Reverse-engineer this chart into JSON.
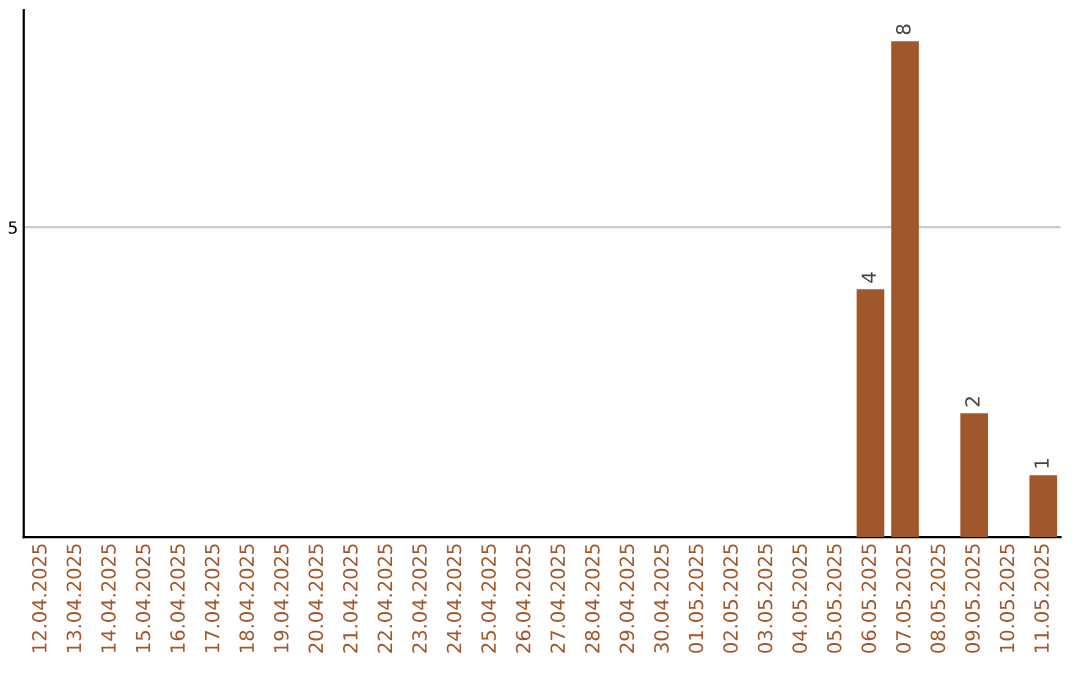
{
  "chart_data": {
    "type": "bar",
    "categories": [
      "12.04.2025",
      "13.04.2025",
      "14.04.2025",
      "15.04.2025",
      "16.04.2025",
      "17.04.2025",
      "18.04.2025",
      "19.04.2025",
      "20.04.2025",
      "21.04.2025",
      "22.04.2025",
      "23.04.2025",
      "24.04.2025",
      "25.04.2025",
      "26.04.2025",
      "27.04.2025",
      "28.04.2025",
      "29.04.2025",
      "30.04.2025",
      "01.05.2025",
      "02.05.2025",
      "03.05.2025",
      "04.05.2025",
      "05.05.2025",
      "06.05.2025",
      "07.05.2025",
      "08.05.2025",
      "09.05.2025",
      "10.05.2025",
      "11.05.2025"
    ],
    "values": [
      null,
      null,
      null,
      null,
      null,
      null,
      null,
      null,
      null,
      null,
      null,
      null,
      null,
      null,
      null,
      null,
      null,
      null,
      null,
      null,
      null,
      null,
      null,
      null,
      4,
      8,
      null,
      2,
      null,
      1
    ],
    "color": "#a0572b",
    "ylim": [
      0,
      8.5
    ],
    "yticks": [
      5
    ],
    "grid": "y",
    "data_labels": true
  }
}
